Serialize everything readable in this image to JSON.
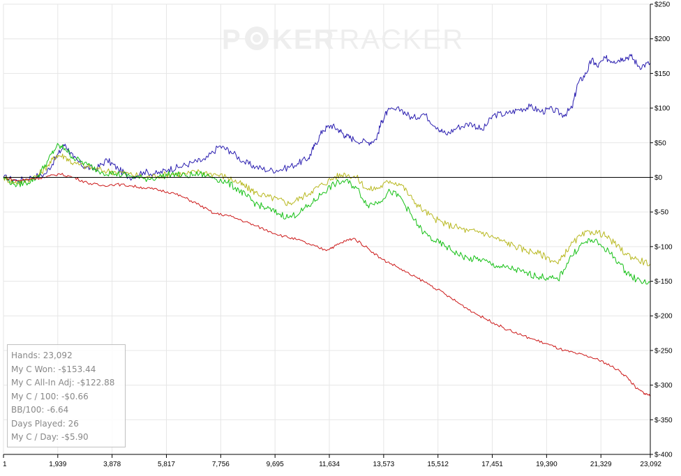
{
  "watermark": {
    "part1": "P",
    "part2": "KER",
    "part3": "TRACKER"
  },
  "stats": [
    "Hands: 23,092",
    "My C Won: -$153.44",
    "My C All-In Adj: -$122.88",
    "My C / 100: -$0.66",
    "BB/100: -6.64",
    "Days Played: 26",
    "My C / Day: -$5.90"
  ],
  "chart_data": {
    "type": "line",
    "xlim": [
      1,
      23092
    ],
    "ylim": [
      -400,
      250
    ],
    "x_ticks": [
      1,
      1939,
      3878,
      5817,
      7756,
      9695,
      11634,
      13573,
      15512,
      17451,
      19390,
      21329,
      23092
    ],
    "x_tick_labels": [
      "1",
      "1,939",
      "3,878",
      "5,817",
      "7,756",
      "9,695",
      "11,634",
      "13,573",
      "15,512",
      "17,451",
      "19,390",
      "21,329",
      "23,092"
    ],
    "y_ticks": [
      250,
      200,
      150,
      100,
      50,
      0,
      -50,
      -100,
      -150,
      -200,
      -250,
      -300,
      -350,
      -400
    ],
    "y_tick_labels": [
      "$250",
      "$200",
      "$150",
      "$100",
      "$50",
      "$0",
      "$-50",
      "$-100",
      "$-150",
      "$-200",
      "$-250",
      "$-300",
      "$-350",
      "$-400"
    ],
    "grid": true,
    "colors": [
      "#2b1fb0",
      "#b8b820",
      "#16c016",
      "#cc1818"
    ],
    "series": [
      {
        "x": [
          1,
          500,
          1000,
          1500,
          1900,
          2200,
          2500,
          2900,
          3300,
          3700,
          4100,
          4500,
          5000,
          5500,
          5900,
          6300,
          6800,
          7200,
          7700,
          8100,
          8600,
          9000,
          9500,
          10000,
          10500,
          10900,
          11100,
          11400,
          11700,
          12000,
          12200,
          12500,
          13000,
          13300,
          13500,
          13700,
          14200,
          14600,
          15000,
          15500,
          15800,
          16200,
          16700,
          17100,
          17500,
          18000,
          18400,
          18800,
          19200,
          19600,
          20000,
          20300,
          20500,
          20800,
          21000,
          21200,
          21500,
          21800,
          22100,
          22400,
          22700,
          23092
        ],
        "values": [
          0,
          -5,
          0,
          5,
          30,
          48,
          28,
          15,
          12,
          25,
          12,
          0,
          8,
          5,
          12,
          15,
          22,
          25,
          45,
          38,
          22,
          15,
          10,
          12,
          20,
          28,
          45,
          68,
          75,
          68,
          60,
          55,
          50,
          55,
          80,
          95,
          98,
          85,
          92,
          72,
          62,
          72,
          78,
          68,
          90,
          92,
          98,
          102,
          95,
          98,
          90,
          100,
          135,
          150,
          170,
          160,
          172,
          168,
          172,
          175,
          160,
          165
        ]
      },
      {
        "x": [
          1,
          400,
          800,
          1200,
          1600,
          1900,
          2200,
          2500,
          3000,
          3500,
          4000,
          4500,
          5000,
          5500,
          6000,
          6500,
          7000,
          7500,
          8000,
          8400,
          8700,
          9000,
          9400,
          9800,
          10200,
          10600,
          11000,
          11400,
          11800,
          12200,
          12600,
          13000,
          13400,
          13800,
          14200,
          14600,
          15000,
          15400,
          15800,
          16200,
          16600,
          17000,
          17400,
          17800,
          18200,
          18600,
          19000,
          19400,
          19800,
          20200,
          20600,
          21000,
          21400,
          21800,
          22200,
          22600,
          23092
        ],
        "values": [
          0,
          -8,
          -5,
          2,
          18,
          32,
          30,
          20,
          15,
          10,
          8,
          5,
          0,
          2,
          5,
          5,
          8,
          5,
          0,
          -8,
          -15,
          -22,
          -28,
          -32,
          -38,
          -30,
          -20,
          -10,
          0,
          5,
          0,
          -18,
          -15,
          -5,
          -10,
          -32,
          -48,
          -60,
          -68,
          -72,
          -78,
          -78,
          -85,
          -92,
          -98,
          -105,
          -108,
          -115,
          -125,
          -100,
          -85,
          -78,
          -82,
          -95,
          -110,
          -118,
          -125
        ]
      },
      {
        "x": [
          1,
          400,
          800,
          1200,
          1600,
          1900,
          2200,
          2500,
          3000,
          3500,
          4000,
          4500,
          5000,
          5500,
          6000,
          6500,
          7000,
          7500,
          8000,
          8400,
          8700,
          9000,
          9400,
          9800,
          10200,
          10600,
          11000,
          11400,
          11800,
          12200,
          12600,
          13000,
          13400,
          13800,
          14200,
          14600,
          15000,
          15400,
          15800,
          16200,
          16600,
          17000,
          17400,
          17800,
          18200,
          18600,
          19000,
          19400,
          19800,
          20200,
          20600,
          21000,
          21400,
          21800,
          22200,
          22600,
          23092
        ],
        "values": [
          0,
          -10,
          -8,
          0,
          25,
          45,
          42,
          28,
          18,
          8,
          5,
          2,
          -2,
          0,
          5,
          2,
          5,
          0,
          -8,
          -18,
          -28,
          -38,
          -45,
          -52,
          -58,
          -50,
          -38,
          -22,
          -10,
          -5,
          -15,
          -40,
          -35,
          -20,
          -30,
          -58,
          -80,
          -92,
          -100,
          -110,
          -118,
          -118,
          -125,
          -130,
          -132,
          -138,
          -142,
          -145,
          -148,
          -118,
          -98,
          -90,
          -100,
          -115,
          -135,
          -148,
          -152
        ]
      },
      {
        "x": [
          1,
          500,
          1000,
          1500,
          2000,
          2500,
          3000,
          3500,
          4000,
          4500,
          5000,
          5500,
          6000,
          6500,
          7000,
          7500,
          8000,
          8500,
          9000,
          9500,
          10000,
          10500,
          11000,
          11500,
          11800,
          12200,
          12500,
          13000,
          13500,
          14000,
          14500,
          15000,
          15500,
          16000,
          16500,
          17000,
          17500,
          18000,
          18500,
          19000,
          19500,
          20000,
          20500,
          21000,
          21500,
          22000,
          22300,
          22600,
          22900,
          23092
        ],
        "values": [
          0,
          -5,
          -2,
          0,
          5,
          0,
          -8,
          -12,
          -10,
          -12,
          -15,
          -18,
          -22,
          -30,
          -40,
          -52,
          -55,
          -62,
          -70,
          -78,
          -85,
          -90,
          -98,
          -105,
          -100,
          -92,
          -88,
          -102,
          -118,
          -128,
          -140,
          -150,
          -162,
          -175,
          -188,
          -200,
          -210,
          -220,
          -228,
          -235,
          -242,
          -250,
          -255,
          -260,
          -268,
          -280,
          -290,
          -305,
          -312,
          -315
        ]
      }
    ]
  }
}
